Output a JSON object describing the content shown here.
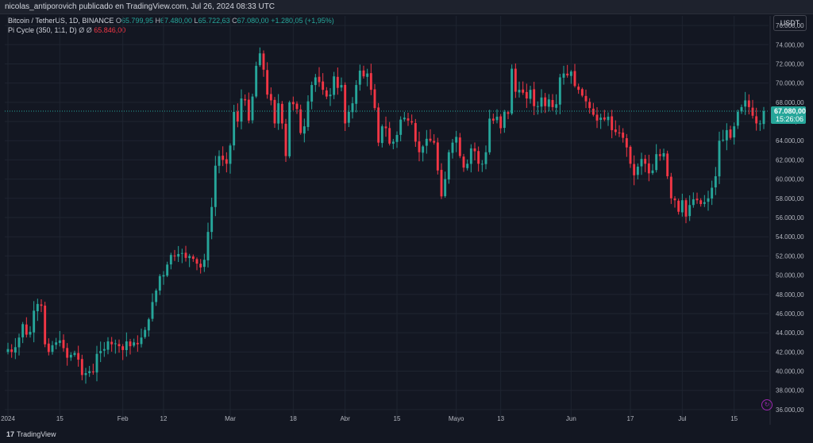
{
  "header": {
    "publisher": "nicolas_antiporovich publicado en TradingView.com, Jul 26, 2024 08:33 UTC"
  },
  "legend": {
    "symbol": "Bitcoin / TetherUS, 1D, BINANCE",
    "o_label": "O",
    "o_value": "65.799,95",
    "h_label": "H",
    "h_value": "67.480,00",
    "l_label": "L",
    "l_value": "65.722,63",
    "c_label": "C",
    "c_value": "67.080,00",
    "change": "+1.280,05 (+1,95%)",
    "indicator_name": "Pi Cycle (350, 111, D)",
    "indicator_extra": "Ø  Ø",
    "indicator_value": "65.846,00"
  },
  "currency_button": "USDT",
  "price_label": {
    "value": "67.080,00",
    "countdown": "15:26:06"
  },
  "footer": {
    "brand_mark": "17",
    "brand": "TradingView"
  },
  "colors": {
    "up": "#26a69a",
    "down": "#f23645",
    "background": "#131722",
    "grid": "#1f2430",
    "price_line": "#26a69a",
    "indicator": "#f23645"
  },
  "chart_data": {
    "type": "candlestick",
    "title": "Bitcoin / TetherUS, 1D, BINANCE",
    "ylim": [
      35000,
      77000
    ],
    "y_ticks": [
      "76.000,00",
      "74.000,00",
      "72.000,00",
      "70.000,00",
      "68.000,00",
      "66.000,00",
      "64.000,00",
      "62.000,00",
      "60.000,00",
      "58.000,00",
      "56.000,00",
      "54.000,00",
      "52.000,00",
      "50.000,00",
      "48.000,00",
      "46.000,00",
      "44.000,00",
      "42.000,00",
      "40.000,00",
      "38.000,00",
      "36.000,00"
    ],
    "y_tick_values": [
      76000,
      74000,
      72000,
      70000,
      68000,
      66000,
      64000,
      62000,
      60000,
      58000,
      56000,
      54000,
      52000,
      50000,
      48000,
      46000,
      44000,
      42000,
      40000,
      38000,
      36000
    ],
    "x_ticks": [
      {
        "label": "2024",
        "index": 0
      },
      {
        "label": "15",
        "index": 14
      },
      {
        "label": "Feb",
        "index": 31
      },
      {
        "label": "12",
        "index": 42
      },
      {
        "label": "Mar",
        "index": 60
      },
      {
        "label": "18",
        "index": 77
      },
      {
        "label": "Abr",
        "index": 91
      },
      {
        "label": "15",
        "index": 105
      },
      {
        "label": "Mayo",
        "index": 121
      },
      {
        "label": "13",
        "index": 133
      },
      {
        "label": "Jun",
        "index": 152
      },
      {
        "label": "17",
        "index": 168
      },
      {
        "label": "Jul",
        "index": 182
      },
      {
        "label": "15",
        "index": 196
      }
    ],
    "last_price": 67080,
    "closes": [
      42300,
      42000,
      42500,
      43500,
      44900,
      43800,
      44100,
      46300,
      47000,
      46800,
      42800,
      42000,
      42700,
      43000,
      43200,
      42400,
      41400,
      41700,
      41900,
      41200,
      39600,
      39800,
      40000,
      39900,
      41800,
      42100,
      42300,
      43100,
      42800,
      42900,
      42600,
      42200,
      43100,
      42600,
      43000,
      42800,
      43500,
      44300,
      45400,
      47200,
      48400,
      49900,
      50000,
      51100,
      52100,
      52000,
      52200,
      52300,
      51800,
      52000,
      51700,
      51200,
      50800,
      51600,
      54500,
      57100,
      61400,
      62400,
      62000,
      61600,
      63500,
      67000,
      66000,
      68400,
      68200,
      66100,
      68600,
      71800,
      73100,
      71400,
      68800,
      68200,
      65800,
      67900,
      65800,
      62400,
      68000,
      67800,
      67300,
      64800,
      65500,
      68100,
      69800,
      70600,
      70100,
      69300,
      68600,
      68800,
      70700,
      69500,
      69800,
      65800,
      67000,
      67900,
      69800,
      71300,
      70700,
      71000,
      69300,
      67400,
      63800,
      65500,
      65300,
      63700,
      63900,
      64600,
      66200,
      66400,
      66100,
      65900,
      63900,
      62800,
      63400,
      64200,
      64000,
      63800,
      60900,
      58200,
      60000,
      62800,
      63800,
      64400,
      62400,
      61200,
      61600,
      63200,
      62900,
      61600,
      61600,
      62800,
      66300,
      66100,
      66500,
      65300,
      67000,
      66800,
      71500,
      69100,
      69300,
      69000,
      68400,
      69300,
      67600,
      67600,
      68500,
      67600,
      68300,
      67500,
      67800,
      70600,
      71000,
      70800,
      71200,
      69700,
      69300,
      68700,
      68100,
      67400,
      66700,
      66100,
      66400,
      66200,
      66500,
      65100,
      64900,
      64800,
      64300,
      63300,
      61600,
      60400,
      61300,
      62100,
      61600,
      60600,
      60900,
      62600,
      62400,
      62700,
      60300,
      58000,
      57800,
      56600,
      57800,
      56100,
      57300,
      57900,
      57800,
      57400,
      57600,
      58000,
      59100,
      60300,
      64000,
      64100,
      65100,
      64300,
      65500,
      67000,
      67500,
      68200,
      67500,
      66600,
      65800,
      65800,
      67080
    ],
    "series": [
      {
        "name": "Bitcoin / TetherUS",
        "values": "closes"
      },
      {
        "name": "Pi Cycle (350, 111, D)",
        "last": 65846
      }
    ]
  }
}
